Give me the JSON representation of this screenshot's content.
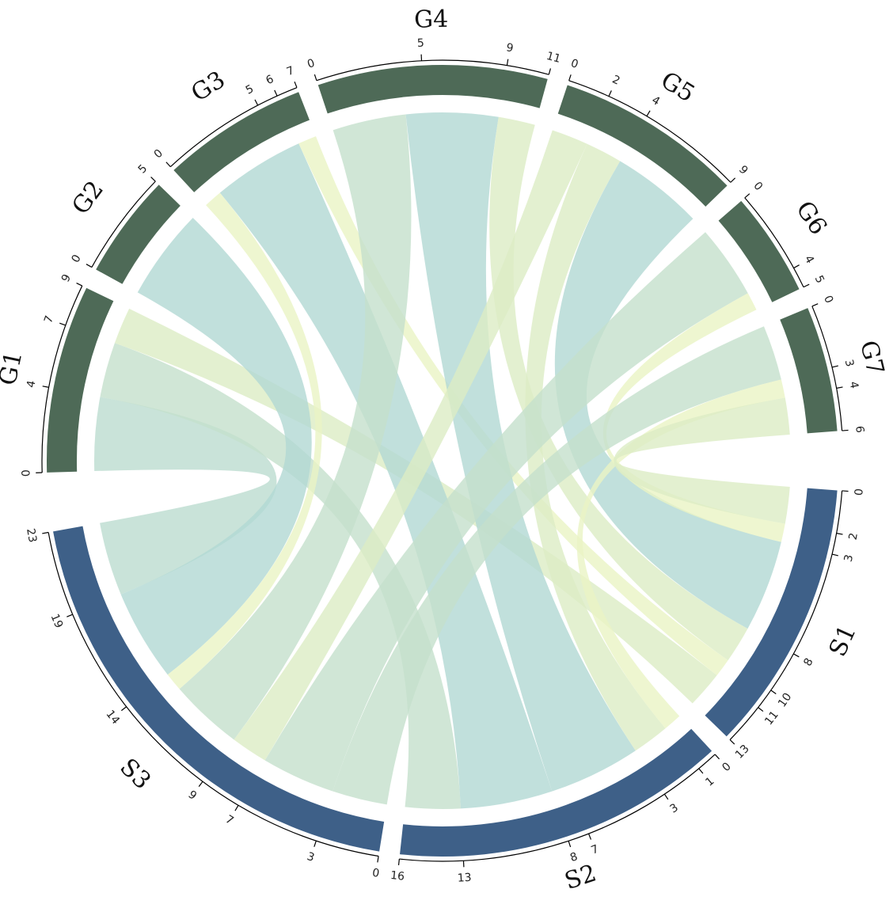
{
  "chart_data": {
    "type": "chord",
    "sectors": [
      {
        "name": "S1",
        "xlim": [
          0,
          13
        ],
        "ticks": [
          0,
          2,
          3,
          8,
          10,
          11,
          13
        ],
        "color": "#3e6088"
      },
      {
        "name": "S2",
        "xlim": [
          0,
          16
        ],
        "ticks": [
          0,
          1,
          3,
          7,
          8,
          13,
          16
        ],
        "color": "#3e6088"
      },
      {
        "name": "S3",
        "xlim": [
          0,
          23
        ],
        "ticks": [
          0,
          3,
          7,
          9,
          14,
          19,
          23
        ],
        "color": "#3e6088"
      },
      {
        "name": "G1",
        "xlim": [
          0,
          9
        ],
        "ticks": [
          0,
          4,
          7,
          9
        ],
        "color": "#4e6a57"
      },
      {
        "name": "G2",
        "xlim": [
          0,
          5
        ],
        "ticks": [
          0,
          5
        ],
        "color": "#4e6a57"
      },
      {
        "name": "G3",
        "xlim": [
          0,
          7
        ],
        "ticks": [
          0,
          5,
          6,
          7
        ],
        "color": "#4e6a57"
      },
      {
        "name": "G4",
        "xlim": [
          0,
          11
        ],
        "ticks": [
          0,
          5,
          9,
          11
        ],
        "color": "#4e6a57"
      },
      {
        "name": "G5",
        "xlim": [
          0,
          9
        ],
        "ticks": [
          0,
          2,
          4,
          9
        ],
        "color": "#4e6a57"
      },
      {
        "name": "G6",
        "xlim": [
          0,
          5
        ],
        "ticks": [
          0,
          4,
          5
        ],
        "color": "#4e6a57"
      },
      {
        "name": "G7",
        "xlim": [
          0,
          6
        ],
        "ticks": [
          0,
          3,
          4,
          6
        ],
        "color": "#4e6a57"
      }
    ],
    "links": [
      {
        "from": "G1",
        "to": "S3",
        "value": 4,
        "color": "#bcdccf"
      },
      {
        "from": "G1",
        "to": "S2",
        "value": 3,
        "color": "#c4e0cc"
      },
      {
        "from": "G1",
        "to": "S1",
        "value": 2,
        "color": "#dcecc4"
      },
      {
        "from": "G2",
        "to": "S3",
        "value": 5,
        "color": "#b2d8d3"
      },
      {
        "from": "G3",
        "to": "S3",
        "value": 1,
        "color": "#eaf4c4"
      },
      {
        "from": "G3",
        "to": "S2",
        "value": 5,
        "color": "#b2d8d3"
      },
      {
        "from": "G3",
        "to": "S1",
        "value": 1,
        "color": "#eaf4c4"
      },
      {
        "from": "G4",
        "to": "S3",
        "value": 4,
        "color": "#c4e0cc"
      },
      {
        "from": "G4",
        "to": "S2",
        "value": 5,
        "color": "#b2d8d3"
      },
      {
        "from": "G4",
        "to": "S1",
        "value": 2,
        "color": "#dcecc4"
      },
      {
        "from": "G5",
        "to": "S3",
        "value": 2,
        "color": "#dcecc4"
      },
      {
        "from": "G5",
        "to": "S2",
        "value": 2,
        "color": "#dcecc4"
      },
      {
        "from": "G5",
        "to": "S1",
        "value": 5,
        "color": "#b2d8d3"
      },
      {
        "from": "G6",
        "to": "S3",
        "value": 4,
        "color": "#c4e0cc"
      },
      {
        "from": "G6",
        "to": "S1",
        "value": 1,
        "color": "#eaf4c4"
      },
      {
        "from": "G7",
        "to": "S3",
        "value": 3,
        "color": "#c4e0cc"
      },
      {
        "from": "G7",
        "to": "S2",
        "value": 1,
        "color": "#eaf4c4"
      },
      {
        "from": "G7",
        "to": "S1",
        "value": 2,
        "color": "#dcecc4"
      }
    ]
  }
}
